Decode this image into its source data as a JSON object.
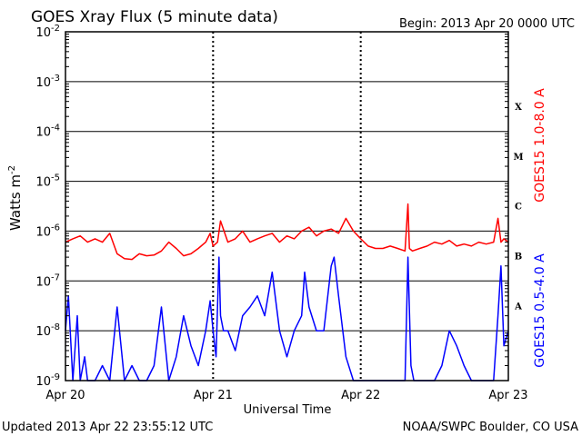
{
  "title": "GOES Xray Flux (5 minute data)",
  "begin_label": "Begin:  2013 Apr 20 0000 UTC",
  "updated_label": "Updated 2013 Apr 22 23:55:12 UTC",
  "source_label": "NOAA/SWPC Boulder, CO USA",
  "colors": {
    "long": "#ff0000",
    "short": "#0000ff",
    "axis": "#000000"
  },
  "chart_data": {
    "type": "line",
    "xlabel": "Universal Time",
    "ylabel": "Watts m-2",
    "y_scale": "log",
    "ylim": [
      1e-09,
      0.01
    ],
    "xlim_days": [
      0,
      3
    ],
    "x_tick_labels": [
      "Apr 20",
      "Apr 21",
      "Apr 22",
      "Apr 23"
    ],
    "y_tick_labels": [
      {
        "value": 0.01,
        "base": "10",
        "exp": "-2"
      },
      {
        "value": 0.001,
        "base": "10",
        "exp": "-3"
      },
      {
        "value": 0.0001,
        "base": "10",
        "exp": "-4"
      },
      {
        "value": 1e-05,
        "base": "10",
        "exp": "-5"
      },
      {
        "value": 1e-06,
        "base": "10",
        "exp": "-6"
      },
      {
        "value": 1e-07,
        "base": "10",
        "exp": "-7"
      },
      {
        "value": 1e-08,
        "base": "10",
        "exp": "-8"
      },
      {
        "value": 1e-09,
        "base": "10",
        "exp": "-9"
      }
    ],
    "flare_classes": [
      {
        "label": "X",
        "value": 0.00032
      },
      {
        "label": "M",
        "value": 3.2e-05
      },
      {
        "label": "C",
        "value": 3.2e-06
      },
      {
        "label": "B",
        "value": 3.2e-07
      },
      {
        "label": "A",
        "value": 3.2e-08
      }
    ],
    "series": [
      {
        "name": "GOES15 1.0-8.0 A",
        "color": "#ff0000",
        "x": [
          0.0,
          0.05,
          0.1,
          0.15,
          0.2,
          0.25,
          0.3,
          0.35,
          0.4,
          0.45,
          0.5,
          0.55,
          0.6,
          0.65,
          0.7,
          0.75,
          0.8,
          0.85,
          0.9,
          0.95,
          0.98,
          1.0,
          1.03,
          1.05,
          1.1,
          1.15,
          1.2,
          1.25,
          1.3,
          1.35,
          1.4,
          1.45,
          1.5,
          1.55,
          1.6,
          1.65,
          1.7,
          1.75,
          1.8,
          1.85,
          1.9,
          1.95,
          2.0,
          2.05,
          2.1,
          2.15,
          2.2,
          2.25,
          2.3,
          2.32,
          2.33,
          2.35,
          2.4,
          2.45,
          2.5,
          2.55,
          2.6,
          2.65,
          2.7,
          2.75,
          2.8,
          2.85,
          2.9,
          2.93,
          2.95,
          2.97,
          3.0
        ],
        "y": [
          6e-07,
          7e-07,
          8e-07,
          6e-07,
          7e-07,
          6e-07,
          9e-07,
          3.5e-07,
          2.8e-07,
          2.7e-07,
          3.5e-07,
          3.2e-07,
          3.3e-07,
          4e-07,
          6e-07,
          4.5e-07,
          3.2e-07,
          3.5e-07,
          4.5e-07,
          6e-07,
          9e-07,
          5e-07,
          6e-07,
          1.6e-06,
          6e-07,
          7e-07,
          1e-06,
          6e-07,
          7e-07,
          8e-07,
          9e-07,
          6e-07,
          8e-07,
          7e-07,
          1e-06,
          1.2e-06,
          8e-07,
          1e-06,
          1.1e-06,
          9e-07,
          1.8e-06,
          1e-06,
          7e-07,
          5e-07,
          4.5e-07,
          4.5e-07,
          5e-07,
          4.5e-07,
          4e-07,
          3.5e-06,
          4.5e-07,
          4e-07,
          4.5e-07,
          5e-07,
          6e-07,
          5.5e-07,
          6.5e-07,
          5e-07,
          5.5e-07,
          5e-07,
          6e-07,
          5.5e-07,
          6e-07,
          1.8e-06,
          6e-07,
          7e-07,
          6e-07
        ]
      },
      {
        "name": "GOES15 0.5-4.0 A",
        "color": "#0000ff",
        "x": [
          0.0,
          0.02,
          0.05,
          0.08,
          0.1,
          0.13,
          0.15,
          0.2,
          0.25,
          0.3,
          0.35,
          0.4,
          0.45,
          0.5,
          0.55,
          0.6,
          0.65,
          0.7,
          0.75,
          0.8,
          0.85,
          0.9,
          0.95,
          0.98,
          1.0,
          1.02,
          1.04,
          1.05,
          1.07,
          1.1,
          1.15,
          1.2,
          1.25,
          1.3,
          1.35,
          1.4,
          1.45,
          1.5,
          1.55,
          1.6,
          1.62,
          1.65,
          1.7,
          1.75,
          1.8,
          1.82,
          1.85,
          1.9,
          1.95,
          2.0,
          2.05,
          2.1,
          2.15,
          2.2,
          2.25,
          2.3,
          2.32,
          2.34,
          2.36,
          2.4,
          2.45,
          2.5,
          2.55,
          2.6,
          2.65,
          2.7,
          2.75,
          2.8,
          2.85,
          2.9,
          2.93,
          2.95,
          2.97,
          3.0
        ],
        "y": [
          1e-08,
          5e-08,
          1e-09,
          2e-08,
          1e-09,
          3e-09,
          1e-09,
          1e-09,
          2e-09,
          1e-09,
          3e-08,
          1e-09,
          2e-09,
          1e-09,
          1e-09,
          2e-09,
          3e-08,
          1e-09,
          3e-09,
          2e-08,
          5e-09,
          2e-09,
          1e-08,
          4e-08,
          1e-08,
          3e-09,
          3e-07,
          2e-08,
          1e-08,
          1e-08,
          4e-09,
          2e-08,
          3e-08,
          5e-08,
          2e-08,
          1.5e-07,
          1e-08,
          3e-09,
          1e-08,
          2e-08,
          1.5e-07,
          3e-08,
          1e-08,
          1e-08,
          2e-07,
          3e-07,
          5e-08,
          3e-09,
          1e-09,
          1e-09,
          1e-09,
          1e-09,
          1e-09,
          1e-09,
          1e-09,
          1e-09,
          3e-07,
          2e-09,
          1e-09,
          1e-09,
          1e-09,
          1e-09,
          2e-09,
          1e-08,
          5e-09,
          2e-09,
          1e-09,
          1e-09,
          1e-09,
          1e-09,
          2e-08,
          2e-07,
          5e-09,
          1e-08
        ]
      }
    ]
  }
}
